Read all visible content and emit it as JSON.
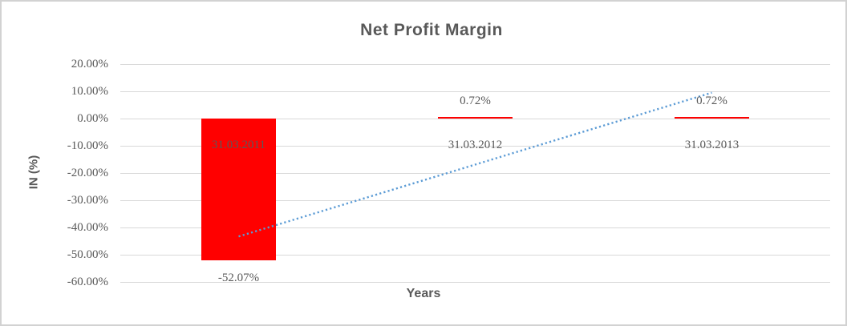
{
  "window": {
    "background": "#FFFFFF",
    "border_color": "#D2D2D2"
  },
  "chart_data": {
    "type": "bar",
    "title": "Net Profit Margin",
    "xlabel": "Years",
    "ylabel": "IN (%)",
    "categories": [
      "31.03.2011",
      "31.03.2012",
      "31.03.2013"
    ],
    "values": [
      -52.07,
      0.72,
      0.72
    ],
    "data_labels": [
      "-52.07%",
      "0.72%",
      "0.72%"
    ],
    "ylim": [
      -60,
      20
    ],
    "yticks": [
      {
        "value": 20,
        "label": "20.00%"
      },
      {
        "value": 10,
        "label": "10.00%"
      },
      {
        "value": 0,
        "label": "0.00%"
      },
      {
        "value": -10,
        "label": "-10.00%"
      },
      {
        "value": -20,
        "label": "-20.00%"
      },
      {
        "value": -30,
        "label": "-30.00%"
      },
      {
        "value": -40,
        "label": "-40.00%"
      },
      {
        "value": -50,
        "label": "-50.00%"
      },
      {
        "value": -60,
        "label": "-60.00%"
      }
    ],
    "grid": true,
    "legend": "none",
    "colors": {
      "bar": "#FF0000",
      "trendline": "#5B9BD5",
      "gridline": "#D9D9D9",
      "text": "#595959"
    },
    "trendline": {
      "type": "linear",
      "style": "dotted",
      "color": "#5B9BD5",
      "start": {
        "category_index": 0,
        "value": -43.3
      },
      "end": {
        "category_index": 2,
        "value": 9.5
      }
    }
  }
}
